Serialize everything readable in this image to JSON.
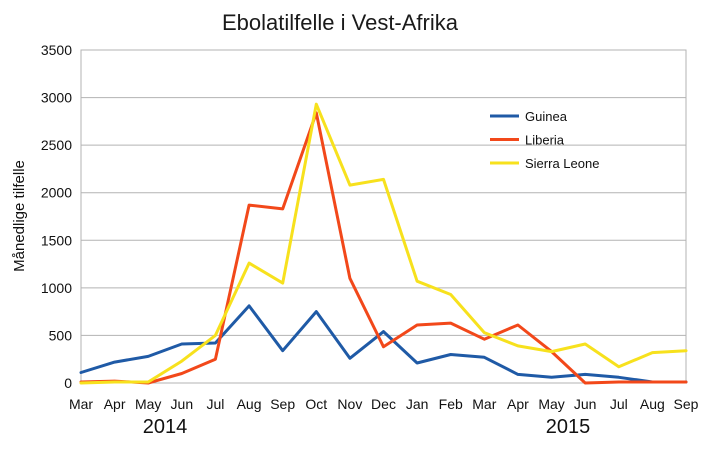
{
  "chart_data": {
    "type": "line",
    "title": "Ebolatilfelle i Vest-Afrika",
    "xlabel": "",
    "ylabel": "Månedlige tilfelle",
    "categories": [
      "Mar",
      "Apr",
      "May",
      "Jun",
      "Jul",
      "Aug",
      "Sep",
      "Oct",
      "Nov",
      "Dec",
      "Jan",
      "Feb",
      "Mar",
      "Apr",
      "May",
      "Jun",
      "Jul",
      "Aug",
      "Sep"
    ],
    "year_labels": [
      "2014",
      "2015"
    ],
    "ylim": [
      0,
      3500
    ],
    "yticks": [
      0,
      500,
      1000,
      1500,
      2000,
      2500,
      3000,
      3500
    ],
    "grid": true,
    "legend_position": "top-right",
    "series": [
      {
        "name": "Guinea",
        "color": "#1f5aa6",
        "values": [
          110,
          220,
          280,
          410,
          420,
          810,
          340,
          750,
          260,
          540,
          210,
          300,
          270,
          90,
          60,
          90,
          60,
          10,
          10
        ]
      },
      {
        "name": "Liberia",
        "color": "#f2481a",
        "values": [
          10,
          20,
          0,
          100,
          250,
          1870,
          1830,
          2840,
          1100,
          380,
          610,
          630,
          460,
          610,
          330,
          0,
          10,
          10,
          10
        ]
      },
      {
        "name": "Sierra Leone",
        "color": "#f7e11d",
        "values": [
          0,
          10,
          10,
          230,
          500,
          1260,
          1050,
          2930,
          2080,
          2140,
          1070,
          930,
          530,
          390,
          330,
          410,
          170,
          320,
          340
        ]
      }
    ]
  }
}
